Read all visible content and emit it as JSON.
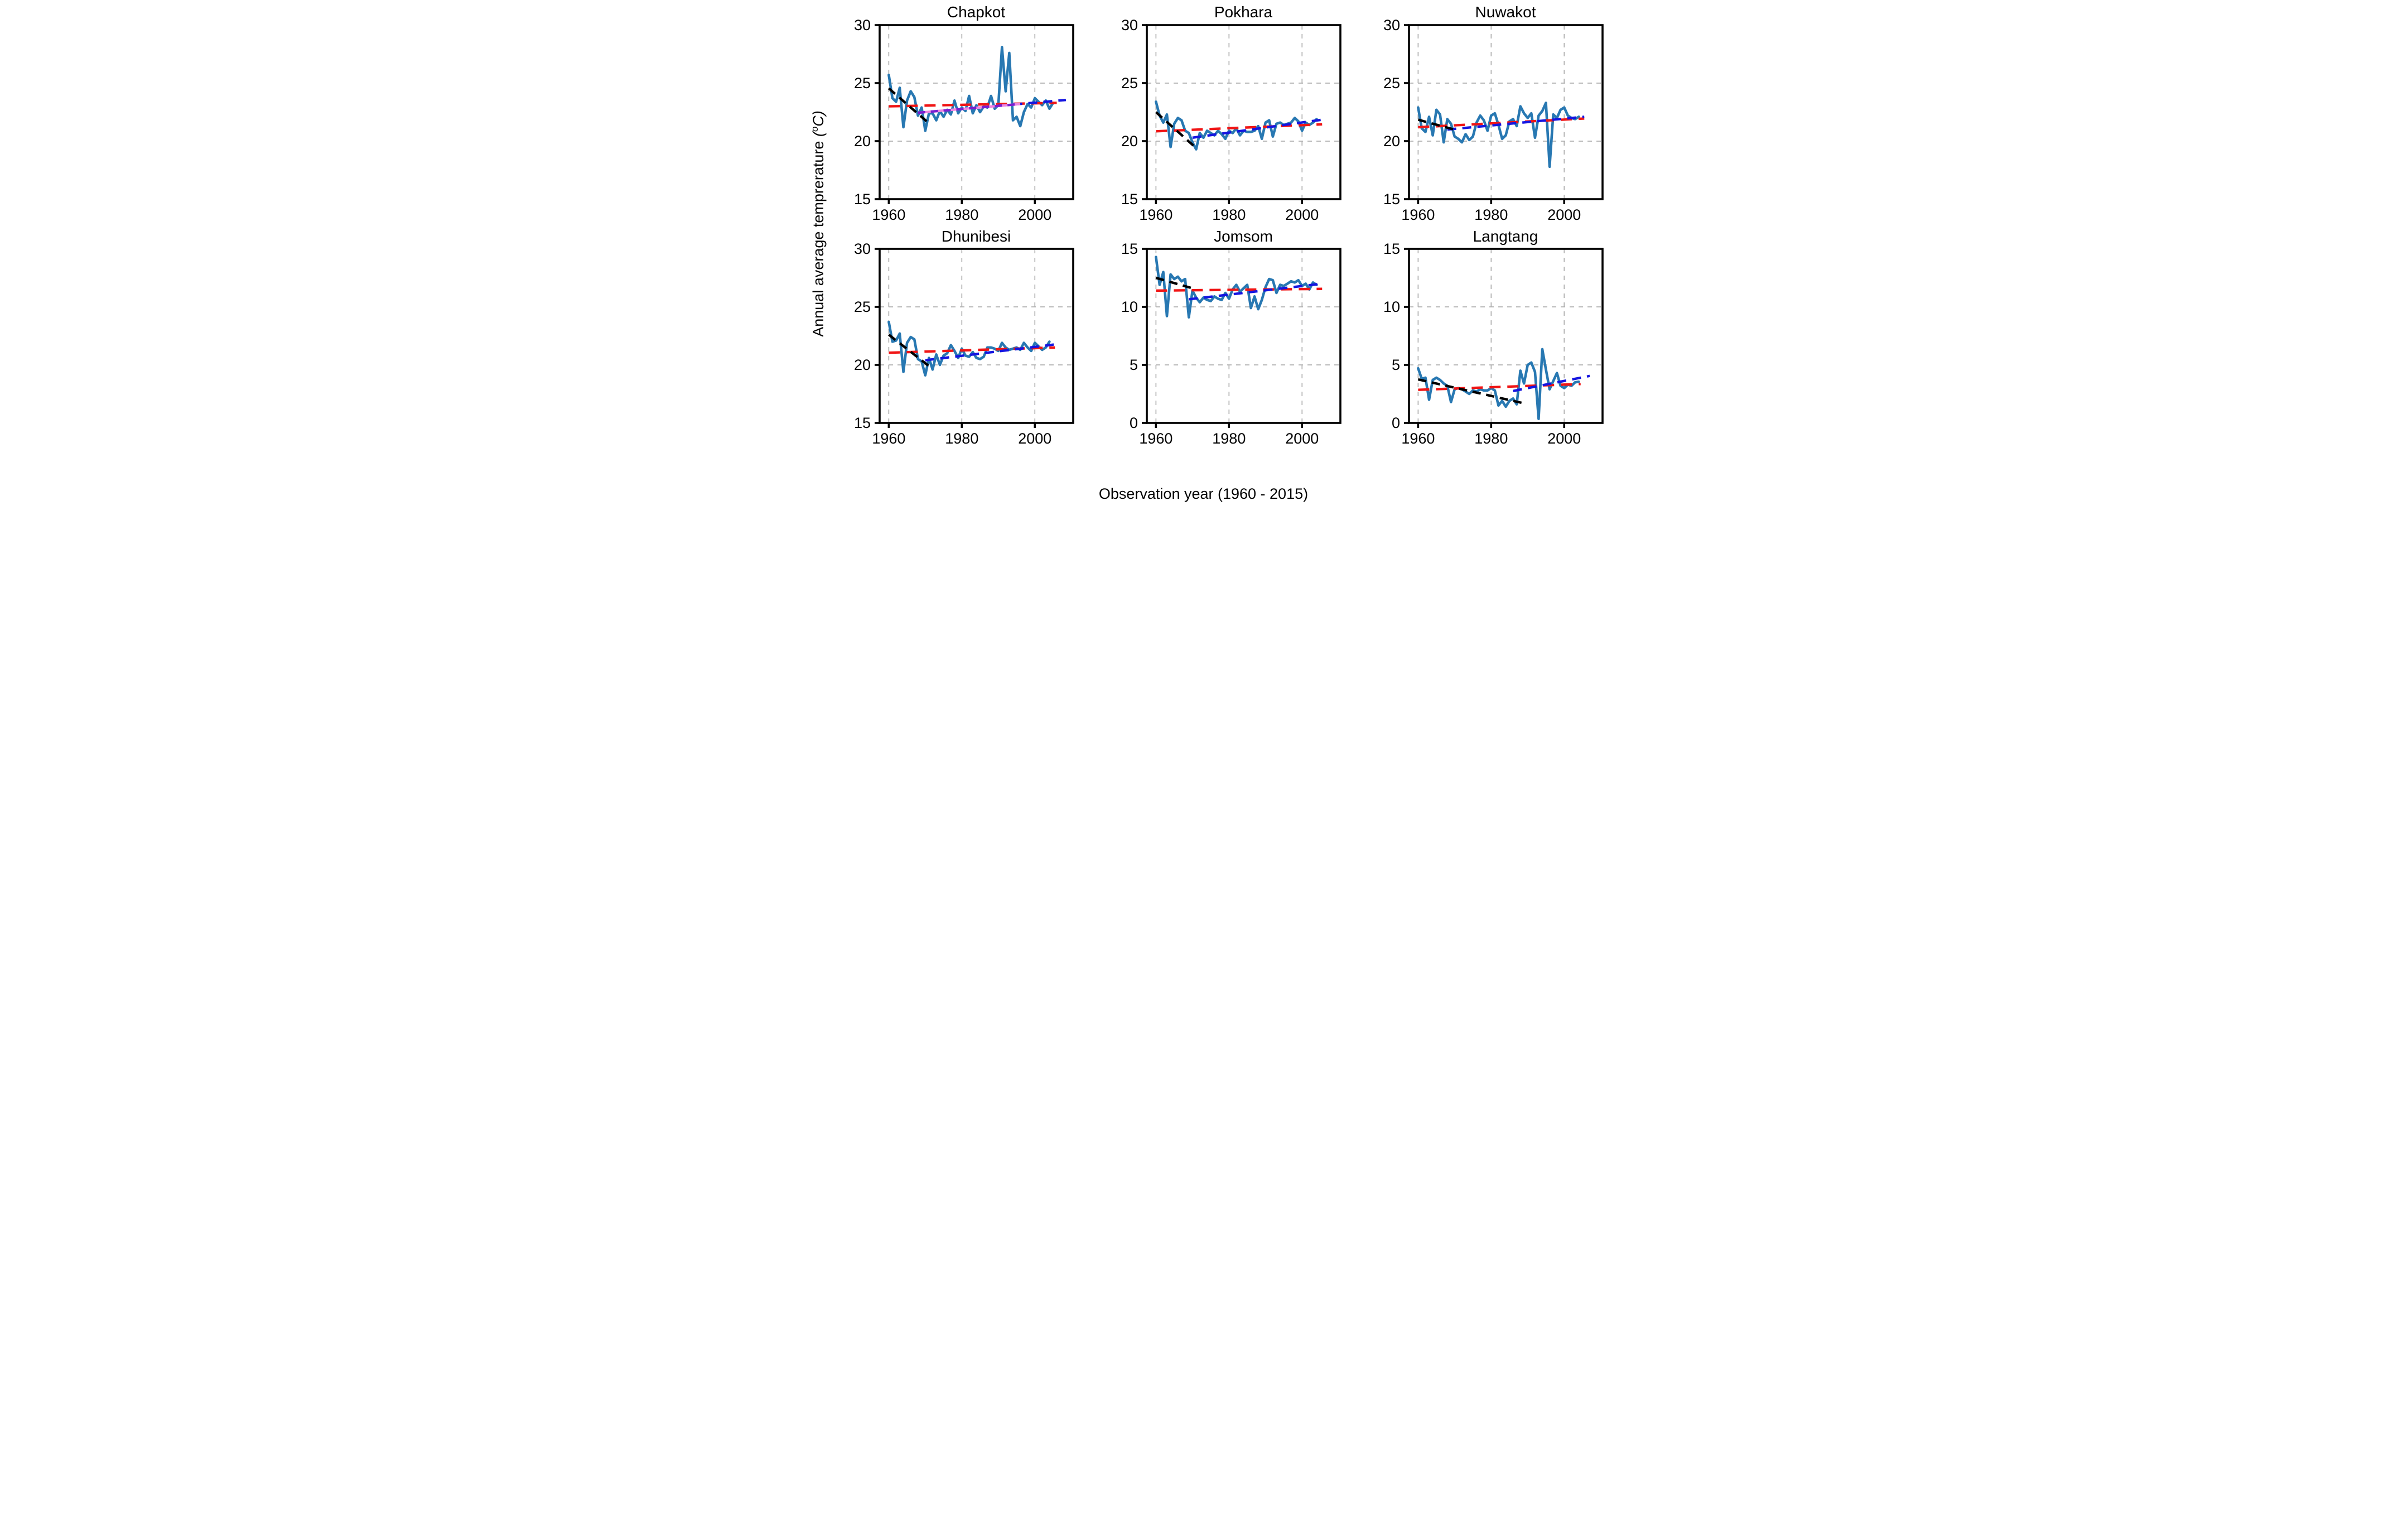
{
  "figure": {
    "xlabel": "Observation year (1960 - 2015)",
    "ylabel": {
      "text": "Annual average temprerature ",
      "unit_open": "(",
      "sup": "o",
      "unit_close": "C)"
    },
    "xticks": [
      1960,
      1980,
      2000
    ],
    "xlim": [
      1957.5,
      2010.5
    ],
    "grid": "dashed",
    "legend": "none"
  },
  "colors": {
    "series": "#2878b2",
    "trend_red": "#f01515",
    "trend_blue": "#1515e0",
    "trend_black": "#000000",
    "trend_purple": "#7a1fd0",
    "trend_violet": "#ee85e0",
    "grid": "#b0b0b0",
    "axis": "#000000"
  },
  "chart_data": [
    {
      "type": "line",
      "title": "Chapkot",
      "ylabel": "Annual average temprerature (oC)",
      "ylim": [
        15,
        30
      ],
      "yticks": [
        15,
        20,
        25,
        30
      ],
      "x_start": 1960,
      "x_step": 1,
      "values": [
        25.7,
        23.7,
        23.4,
        24.6,
        21.2,
        23.5,
        24.3,
        23.8,
        22.2,
        22.9,
        20.9,
        22.4,
        22.4,
        21.8,
        22.6,
        22.1,
        22.7,
        22.3,
        23.5,
        22.4,
        22.9,
        22.6,
        23.9,
        22.4,
        23.1,
        22.5,
        23.0,
        22.9,
        23.9,
        22.8,
        23.1,
        28.1,
        24.3,
        27.6,
        21.8,
        22.1,
        21.3,
        22.5,
        23.2,
        22.9,
        23.7,
        23.4,
        23.1,
        23.5,
        22.8,
        23.3
      ],
      "trends": [
        {
          "name": "red_dashed_full_period",
          "color": "trend_red",
          "dash": "20 12",
          "from": [
            1960,
            23.0
          ],
          "to": [
            2006,
            23.3
          ]
        },
        {
          "name": "blue_dashed_recent",
          "color": "trend_blue",
          "dash": "16 11",
          "from": [
            1990,
            23.05
          ],
          "to": [
            2008.5,
            23.55
          ]
        },
        {
          "name": "violet_solid_segment",
          "color": "trend_violet",
          "dash": "",
          "from": [
            1968,
            22.45
          ],
          "to": [
            1996,
            23.2
          ]
        },
        {
          "name": "purple_dashed_segment",
          "color": "trend_purple",
          "dash": "13 10",
          "from": [
            1968,
            22.45
          ],
          "to": [
            1996,
            23.2
          ]
        },
        {
          "name": "black_dashed_early",
          "color": "trend_black",
          "dash": "15 10",
          "from": [
            1960,
            24.55
          ],
          "to": [
            1971.5,
            21.4
          ]
        }
      ]
    },
    {
      "type": "line",
      "title": "Pokhara",
      "ylabel": "Annual average temprerature (oC)",
      "ylim": [
        15,
        30
      ],
      "yticks": [
        15,
        20,
        25,
        30
      ],
      "x_start": 1960,
      "x_step": 1,
      "values": [
        23.4,
        22.2,
        21.6,
        22.3,
        19.5,
        21.5,
        22.0,
        21.8,
        20.9,
        20.7,
        19.9,
        19.3,
        20.7,
        20.3,
        20.9,
        20.7,
        20.5,
        20.9,
        20.6,
        20.2,
        20.9,
        20.7,
        21.1,
        20.5,
        20.9,
        20.8,
        20.8,
        20.9,
        21.3,
        20.2,
        21.6,
        21.8,
        20.4,
        21.5,
        21.6,
        21.4,
        21.5,
        21.6,
        22.0,
        21.7,
        20.9,
        21.6,
        21.4,
        21.6,
        21.9
      ],
      "trends": [
        {
          "name": "red_dashed_full_period",
          "color": "trend_red",
          "dash": "20 12",
          "from": [
            1960,
            20.85
          ],
          "to": [
            2005.5,
            21.45
          ]
        },
        {
          "name": "blue_dashed_recent",
          "color": "trend_blue",
          "dash": "16 11",
          "from": [
            1970,
            20.3
          ],
          "to": [
            2005.5,
            21.85
          ]
        },
        {
          "name": "black_dashed_early",
          "color": "trend_black",
          "dash": "15 10",
          "from": [
            1960,
            22.5
          ],
          "to": [
            1970.5,
            19.55
          ]
        }
      ]
    },
    {
      "type": "line",
      "title": "Nuwakot",
      "ylabel": "Annual average temprerature (oC)",
      "ylim": [
        15,
        30
      ],
      "yticks": [
        15,
        20,
        25,
        30
      ],
      "x_start": 1960,
      "x_step": 1,
      "values": [
        22.9,
        21.1,
        20.8,
        22.1,
        20.5,
        22.7,
        22.3,
        19.9,
        21.9,
        21.5,
        20.4,
        20.2,
        19.9,
        20.6,
        20.1,
        20.4,
        21.6,
        22.2,
        21.8,
        20.9,
        22.2,
        22.4,
        21.4,
        20.2,
        20.5,
        21.7,
        21.9,
        21.3,
        23.0,
        22.4,
        22.0,
        22.4,
        20.3,
        22.2,
        22.6,
        23.3,
        17.8,
        22.3,
        22.0,
        22.7,
        22.9,
        22.2,
        22.0,
        21.9,
        22.1
      ],
      "trends": [
        {
          "name": "red_dashed_full_period",
          "color": "trend_red",
          "dash": "20 12",
          "from": [
            1960,
            21.2
          ],
          "to": [
            2005.5,
            21.95
          ]
        },
        {
          "name": "blue_dashed_recent",
          "color": "trend_blue",
          "dash": "16 11",
          "from": [
            1968,
            21.0
          ],
          "to": [
            2005.5,
            22.1
          ]
        },
        {
          "name": "black_dashed_early",
          "color": "trend_black",
          "dash": "15 10",
          "from": [
            1960,
            21.85
          ],
          "to": [
            1970.5,
            20.95
          ]
        }
      ]
    },
    {
      "type": "line",
      "title": "Dhunibesi",
      "ylabel": "Annual average temprerature (oC)",
      "ylim": [
        15,
        30
      ],
      "yticks": [
        15,
        20,
        25,
        30
      ],
      "x_start": 1960,
      "x_step": 1,
      "values": [
        23.7,
        22.0,
        22.1,
        22.7,
        19.4,
        21.9,
        22.4,
        22.2,
        20.5,
        20.3,
        19.1,
        20.6,
        19.6,
        20.9,
        20.0,
        20.8,
        21.0,
        21.7,
        21.2,
        20.6,
        21.4,
        20.8,
        20.7,
        21.1,
        20.6,
        20.5,
        20.7,
        21.5,
        21.5,
        21.4,
        21.2,
        21.9,
        21.5,
        21.3,
        21.4,
        21.5,
        21.3,
        21.9,
        21.5,
        21.2,
        21.9,
        21.6,
        21.3,
        21.5,
        22.0
      ],
      "trends": [
        {
          "name": "red_dashed_full_period",
          "color": "trend_red",
          "dash": "20 12",
          "from": [
            1960,
            21.05
          ],
          "to": [
            2005.5,
            21.5
          ]
        },
        {
          "name": "blue_dashed_recent",
          "color": "trend_blue",
          "dash": "16 11",
          "from": [
            1970,
            20.4
          ],
          "to": [
            2006.5,
            21.8
          ]
        },
        {
          "name": "black_dashed_early",
          "color": "trend_black",
          "dash": "15 10",
          "from": [
            1960,
            22.6
          ],
          "to": [
            1971,
            19.9
          ]
        }
      ]
    },
    {
      "type": "line",
      "title": "Jomsom",
      "ylabel": "Annual average temprerature (oC)",
      "ylim": [
        0,
        15
      ],
      "yticks": [
        0,
        5,
        10,
        15
      ],
      "x_start": 1960,
      "x_step": 1,
      "values": [
        14.3,
        11.9,
        13.0,
        9.2,
        12.8,
        12.4,
        12.6,
        12.2,
        12.4,
        9.1,
        11.4,
        10.8,
        10.4,
        10.8,
        10.6,
        10.5,
        10.9,
        10.7,
        10.6,
        11.2,
        10.7,
        11.5,
        11.9,
        11.3,
        11.6,
        11.9,
        9.9,
        10.9,
        9.8,
        10.6,
        11.7,
        12.4,
        12.3,
        11.2,
        11.9,
        11.8,
        12.0,
        12.2,
        12.1,
        12.3,
        11.8,
        12.0,
        11.5,
        12.1,
        11.9
      ],
      "trends": [
        {
          "name": "red_dashed_full_period",
          "color": "trend_red",
          "dash": "20 12",
          "from": [
            1960,
            11.4
          ],
          "to": [
            2005.5,
            11.55
          ]
        },
        {
          "name": "blue_dashed_recent",
          "color": "trend_blue",
          "dash": "16 11",
          "from": [
            1969,
            10.65
          ],
          "to": [
            2005.5,
            12.0
          ]
        },
        {
          "name": "black_dashed_early",
          "color": "trend_black",
          "dash": "15 10",
          "from": [
            1960,
            12.5
          ],
          "to": [
            1970,
            11.6
          ]
        }
      ]
    },
    {
      "type": "line",
      "title": "Langtang",
      "ylabel": "Annual average temprerature (oC)",
      "ylim": [
        0,
        15
      ],
      "yticks": [
        0,
        5,
        10,
        15
      ],
      "x_start": 1960,
      "x_step": 1,
      "values": [
        4.7,
        3.8,
        3.9,
        2.0,
        3.7,
        3.9,
        3.7,
        3.4,
        3.2,
        1.8,
        2.9,
        3.0,
        2.9,
        2.7,
        2.5,
        2.8,
        2.7,
        2.9,
        2.8,
        2.8,
        3.0,
        2.8,
        1.5,
        1.9,
        1.4,
        1.9,
        2.1,
        1.6,
        4.5,
        3.4,
        5.0,
        5.2,
        4.4,
        0.35,
        6.35,
        4.6,
        2.9,
        3.6,
        4.3,
        3.2,
        3.0,
        3.3,
        3.2,
        3.5,
        3.55
      ],
      "trends": [
        {
          "name": "red_dashed_full_period",
          "color": "trend_red",
          "dash": "20 12",
          "from": [
            1960,
            2.85
          ],
          "to": [
            2004.5,
            3.35
          ]
        },
        {
          "name": "blue_dashed_recent",
          "color": "trend_blue",
          "dash": "16 11",
          "from": [
            1986,
            2.75
          ],
          "to": [
            2007,
            4.05
          ]
        },
        {
          "name": "black_dashed_early",
          "color": "trend_black",
          "dash": "15 10",
          "from": [
            1960,
            3.75
          ],
          "to": [
            1989.5,
            1.65
          ]
        }
      ]
    }
  ]
}
